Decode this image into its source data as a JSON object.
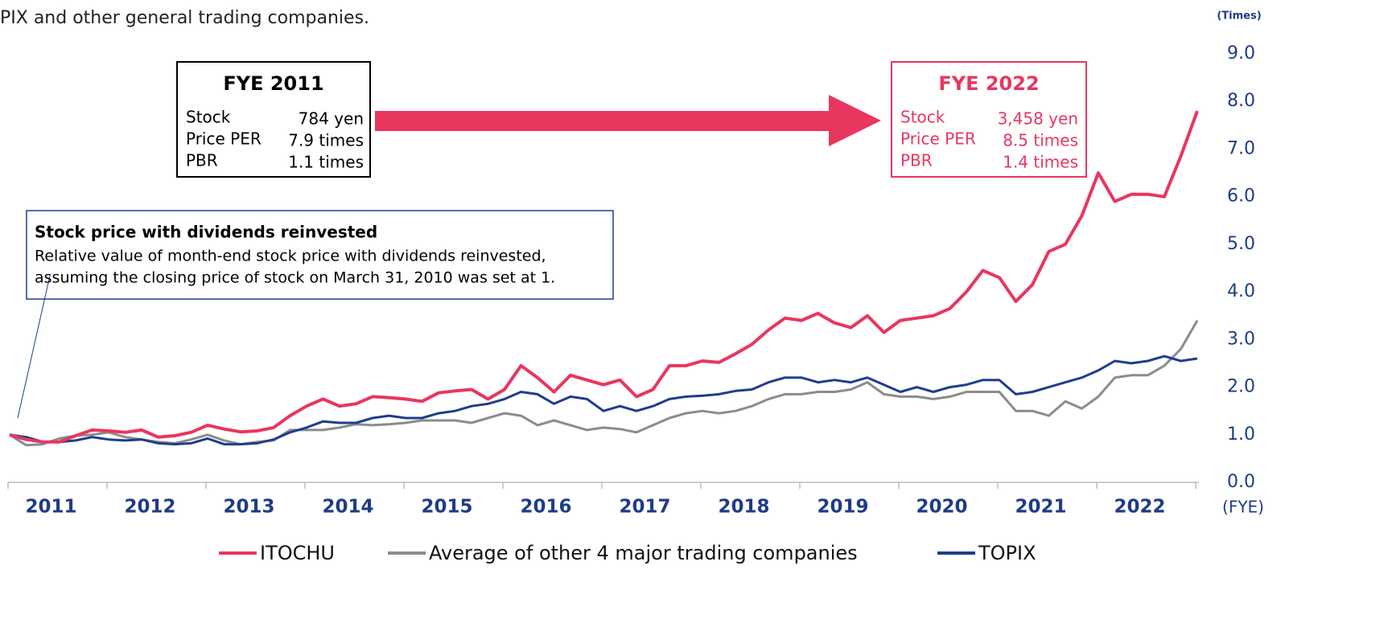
{
  "caption": "PIX and other general trading companies.",
  "callouts": [
    {
      "title": "FYE 2011",
      "rows": [
        [
          "Stock",
          "784 yen"
        ],
        [
          "Price PER",
          "7.9 times"
        ],
        [
          "PBR",
          "1.1 times"
        ]
      ]
    },
    {
      "title": "FYE 2022",
      "rows": [
        [
          "Stock",
          "3,458 yen"
        ],
        [
          "Price PER",
          "8.5 times"
        ],
        [
          "PBR",
          "1.4 times"
        ]
      ]
    }
  ],
  "note": {
    "title": "Stock price with dividends reinvested",
    "lines": [
      "Relative value of month-end stock price with dividends reinvested,",
      "assuming the closing price of stock on March 31, 2010 was set at 1."
    ]
  },
  "chart_data": {
    "type": "line",
    "y_unit": "(Times)",
    "x_unit": "(FYE)",
    "categories": [
      null,
      null,
      null,
      "2011",
      null,
      null,
      null,
      null,
      null,
      "2012",
      null,
      null,
      null,
      null,
      null,
      "2013",
      null,
      null,
      null,
      null,
      null,
      "2014",
      null,
      null,
      null,
      null,
      null,
      "2015",
      null,
      null,
      null,
      null,
      null,
      "2016",
      null,
      null,
      null,
      null,
      null,
      "2017",
      null,
      null,
      null,
      null,
      null,
      "2018",
      null,
      null,
      null,
      null,
      null,
      "2019",
      null,
      null,
      null,
      null,
      null,
      "2020",
      null,
      null,
      null,
      null,
      null,
      "2021",
      null,
      null,
      null,
      null,
      null,
      "2022",
      null,
      null,
      null
    ],
    "series": [
      {
        "name": "ITOCHU",
        "color": "#e8365f",
        "values": [
          1.0,
          0.9,
          0.85,
          0.85,
          0.98,
          1.1,
          1.08,
          1.05,
          1.1,
          0.95,
          0.98,
          1.05,
          1.2,
          1.12,
          1.06,
          1.08,
          1.15,
          1.4,
          1.6,
          1.75,
          1.6,
          1.65,
          1.8,
          1.78,
          1.75,
          1.7,
          1.88,
          1.92,
          1.95,
          1.75,
          1.95,
          2.45,
          2.2,
          1.9,
          2.25,
          2.15,
          2.05,
          2.15,
          1.8,
          1.95,
          2.45,
          2.45,
          2.55,
          2.52,
          2.7,
          2.9,
          3.2,
          3.45,
          3.4,
          3.55,
          3.35,
          3.25,
          3.5,
          3.15,
          3.4,
          3.45,
          3.5,
          3.65,
          4.0,
          4.45,
          4.3,
          3.8,
          4.15,
          4.85,
          5.0,
          5.6,
          6.5,
          5.9,
          6.05,
          6.05,
          6.0,
          6.85,
          7.8
        ]
      },
      {
        "name": "Average of other 4 major trading companies",
        "color": "#8c8c8c",
        "values": [
          1.0,
          0.78,
          0.8,
          0.92,
          0.98,
          1.0,
          1.05,
          0.95,
          0.9,
          0.85,
          0.82,
          0.9,
          1.0,
          0.88,
          0.8,
          0.85,
          0.88,
          1.1,
          1.1,
          1.1,
          1.15,
          1.22,
          1.2,
          1.22,
          1.25,
          1.3,
          1.3,
          1.3,
          1.25,
          1.35,
          1.45,
          1.4,
          1.2,
          1.3,
          1.2,
          1.1,
          1.15,
          1.12,
          1.05,
          1.2,
          1.35,
          1.45,
          1.5,
          1.45,
          1.5,
          1.6,
          1.75,
          1.85,
          1.85,
          1.9,
          1.9,
          1.95,
          2.1,
          1.85,
          1.8,
          1.8,
          1.75,
          1.8,
          1.9,
          1.9,
          1.9,
          1.5,
          1.5,
          1.4,
          1.7,
          1.55,
          1.8,
          2.2,
          2.25,
          2.25,
          2.45,
          2.8,
          3.4
        ]
      },
      {
        "name": "TOPIX",
        "color": "#1f3d8f",
        "values": [
          1.0,
          0.95,
          0.85,
          0.85,
          0.88,
          0.95,
          0.9,
          0.88,
          0.9,
          0.82,
          0.8,
          0.82,
          0.92,
          0.8,
          0.8,
          0.82,
          0.9,
          1.05,
          1.15,
          1.28,
          1.25,
          1.25,
          1.35,
          1.4,
          1.35,
          1.35,
          1.45,
          1.5,
          1.6,
          1.65,
          1.75,
          1.9,
          1.85,
          1.65,
          1.8,
          1.75,
          1.5,
          1.6,
          1.5,
          1.6,
          1.75,
          1.8,
          1.82,
          1.85,
          1.92,
          1.95,
          2.1,
          2.2,
          2.2,
          2.1,
          2.15,
          2.1,
          2.2,
          2.05,
          1.9,
          2.0,
          1.9,
          2.0,
          2.05,
          2.15,
          2.15,
          1.85,
          1.9,
          2.0,
          2.1,
          2.2,
          2.35,
          2.55,
          2.5,
          2.55,
          2.65,
          2.55,
          2.6
        ]
      }
    ],
    "ylim": [
      0,
      9
    ],
    "yticks": [
      {
        "value": 0,
        "label": "0.0"
      },
      {
        "value": 1,
        "label": "1.0"
      },
      {
        "value": 2,
        "label": "2.0"
      },
      {
        "value": 3,
        "label": "3.0"
      },
      {
        "value": 4,
        "label": "4.0"
      },
      {
        "value": 5,
        "label": "5.0"
      },
      {
        "value": 6,
        "label": "6.0"
      },
      {
        "value": 7,
        "label": "7.0"
      },
      {
        "value": 8,
        "label": "8.0"
      },
      {
        "value": 9,
        "label": "9.0"
      }
    ],
    "grid": false,
    "legend": "bottom"
  }
}
